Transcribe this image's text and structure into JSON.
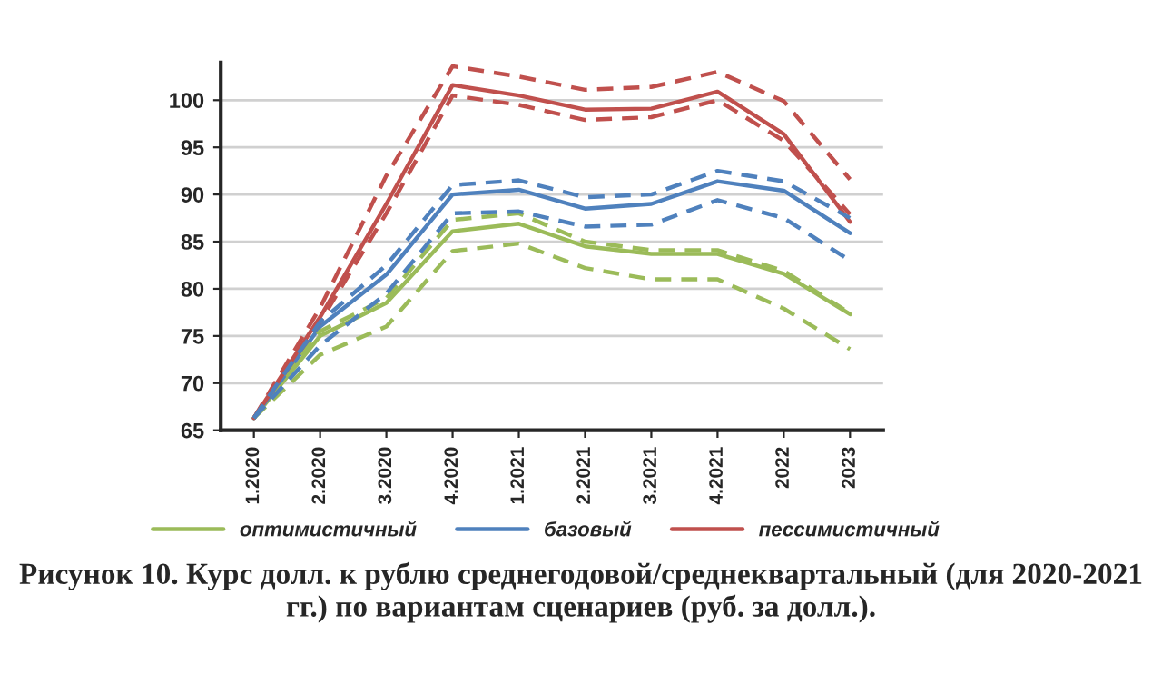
{
  "chart_data": {
    "type": "line",
    "categories": [
      "1.2020",
      "2.2020",
      "3.2020",
      "4.2020",
      "1.2021",
      "2.2021",
      "3.2021",
      "4.2021",
      "2022",
      "2023"
    ],
    "series": [
      {
        "name": "оптимистичный",
        "color": "#9bbb59",
        "line_style": "solid",
        "values": [
          66.3,
          75,
          78.5,
          86.1,
          86.9,
          84.5,
          83.7,
          83.7,
          81.6,
          77.3
        ]
      },
      {
        "name": "базовый",
        "color": "#4f81bd",
        "line_style": "solid",
        "values": [
          66.3,
          76,
          81.5,
          90,
          90.5,
          88.5,
          89,
          91.4,
          90.4,
          85.9
        ]
      },
      {
        "name": "пессимистичный",
        "color": "#c0504d",
        "line_style": "solid",
        "values": [
          66.3,
          77,
          89,
          101.6,
          100.5,
          99,
          99.1,
          100.9,
          96.4,
          87.1
        ]
      },
      {
        "color": "#9bbb59",
        "line_style": "dashed",
        "values": [
          66.3,
          75.5,
          79,
          87.3,
          88,
          85,
          84.1,
          84.1,
          81.9,
          77.4
        ]
      },
      {
        "color": "#9bbb59",
        "line_style": "dashed",
        "values": [
          66.3,
          73,
          76,
          84,
          84.8,
          82.2,
          81,
          81,
          77.9,
          73.6
        ]
      },
      {
        "color": "#4f81bd",
        "line_style": "dashed",
        "values": [
          66.3,
          76.5,
          82.5,
          91,
          91.5,
          89.7,
          90,
          92.5,
          91.4,
          87.5
        ]
      },
      {
        "color": "#4f81bd",
        "line_style": "dashed",
        "values": [
          66.3,
          74,
          79.5,
          88,
          88.2,
          86.6,
          86.8,
          89.4,
          87.5,
          83
        ]
      },
      {
        "color": "#c0504d",
        "line_style": "dashed",
        "values": [
          66.3,
          78,
          92,
          103.6,
          102.5,
          101.1,
          101.4,
          103,
          99.9,
          91.6
        ]
      },
      {
        "color": "#c0504d",
        "line_style": "dashed",
        "values": [
          66.3,
          76.5,
          88,
          100.5,
          99.5,
          97.9,
          98.2,
          100,
          95.7,
          87.9
        ]
      }
    ],
    "ylim": [
      65,
      104
    ],
    "yticks": [
      65,
      70,
      75,
      80,
      85,
      90,
      95,
      100
    ],
    "grid": "y",
    "legend": "bottom",
    "annotations": [
      "Рисунок 10. Курс долл. к рублю среднегодовой/среднеквартальный (для 2020-2021 гг.) по вариантам сценариев (руб. за долл.)."
    ]
  }
}
